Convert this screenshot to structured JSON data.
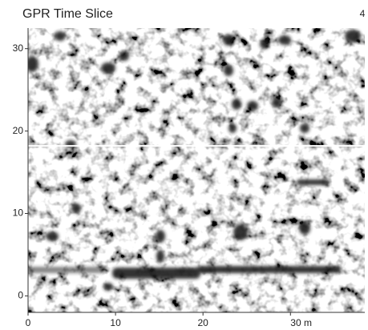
{
  "chart_data": {
    "type": "image",
    "title": "GPR Time Slice",
    "annotation": "4",
    "xlim": [
      0,
      38.5
    ],
    "ylim": [
      -2,
      32.5
    ],
    "xticks": [
      0,
      10,
      20,
      {
        "value": 30,
        "label": "30 m"
      }
    ],
    "yticks": [
      0,
      10,
      20,
      30
    ],
    "hline": 18.2
  }
}
